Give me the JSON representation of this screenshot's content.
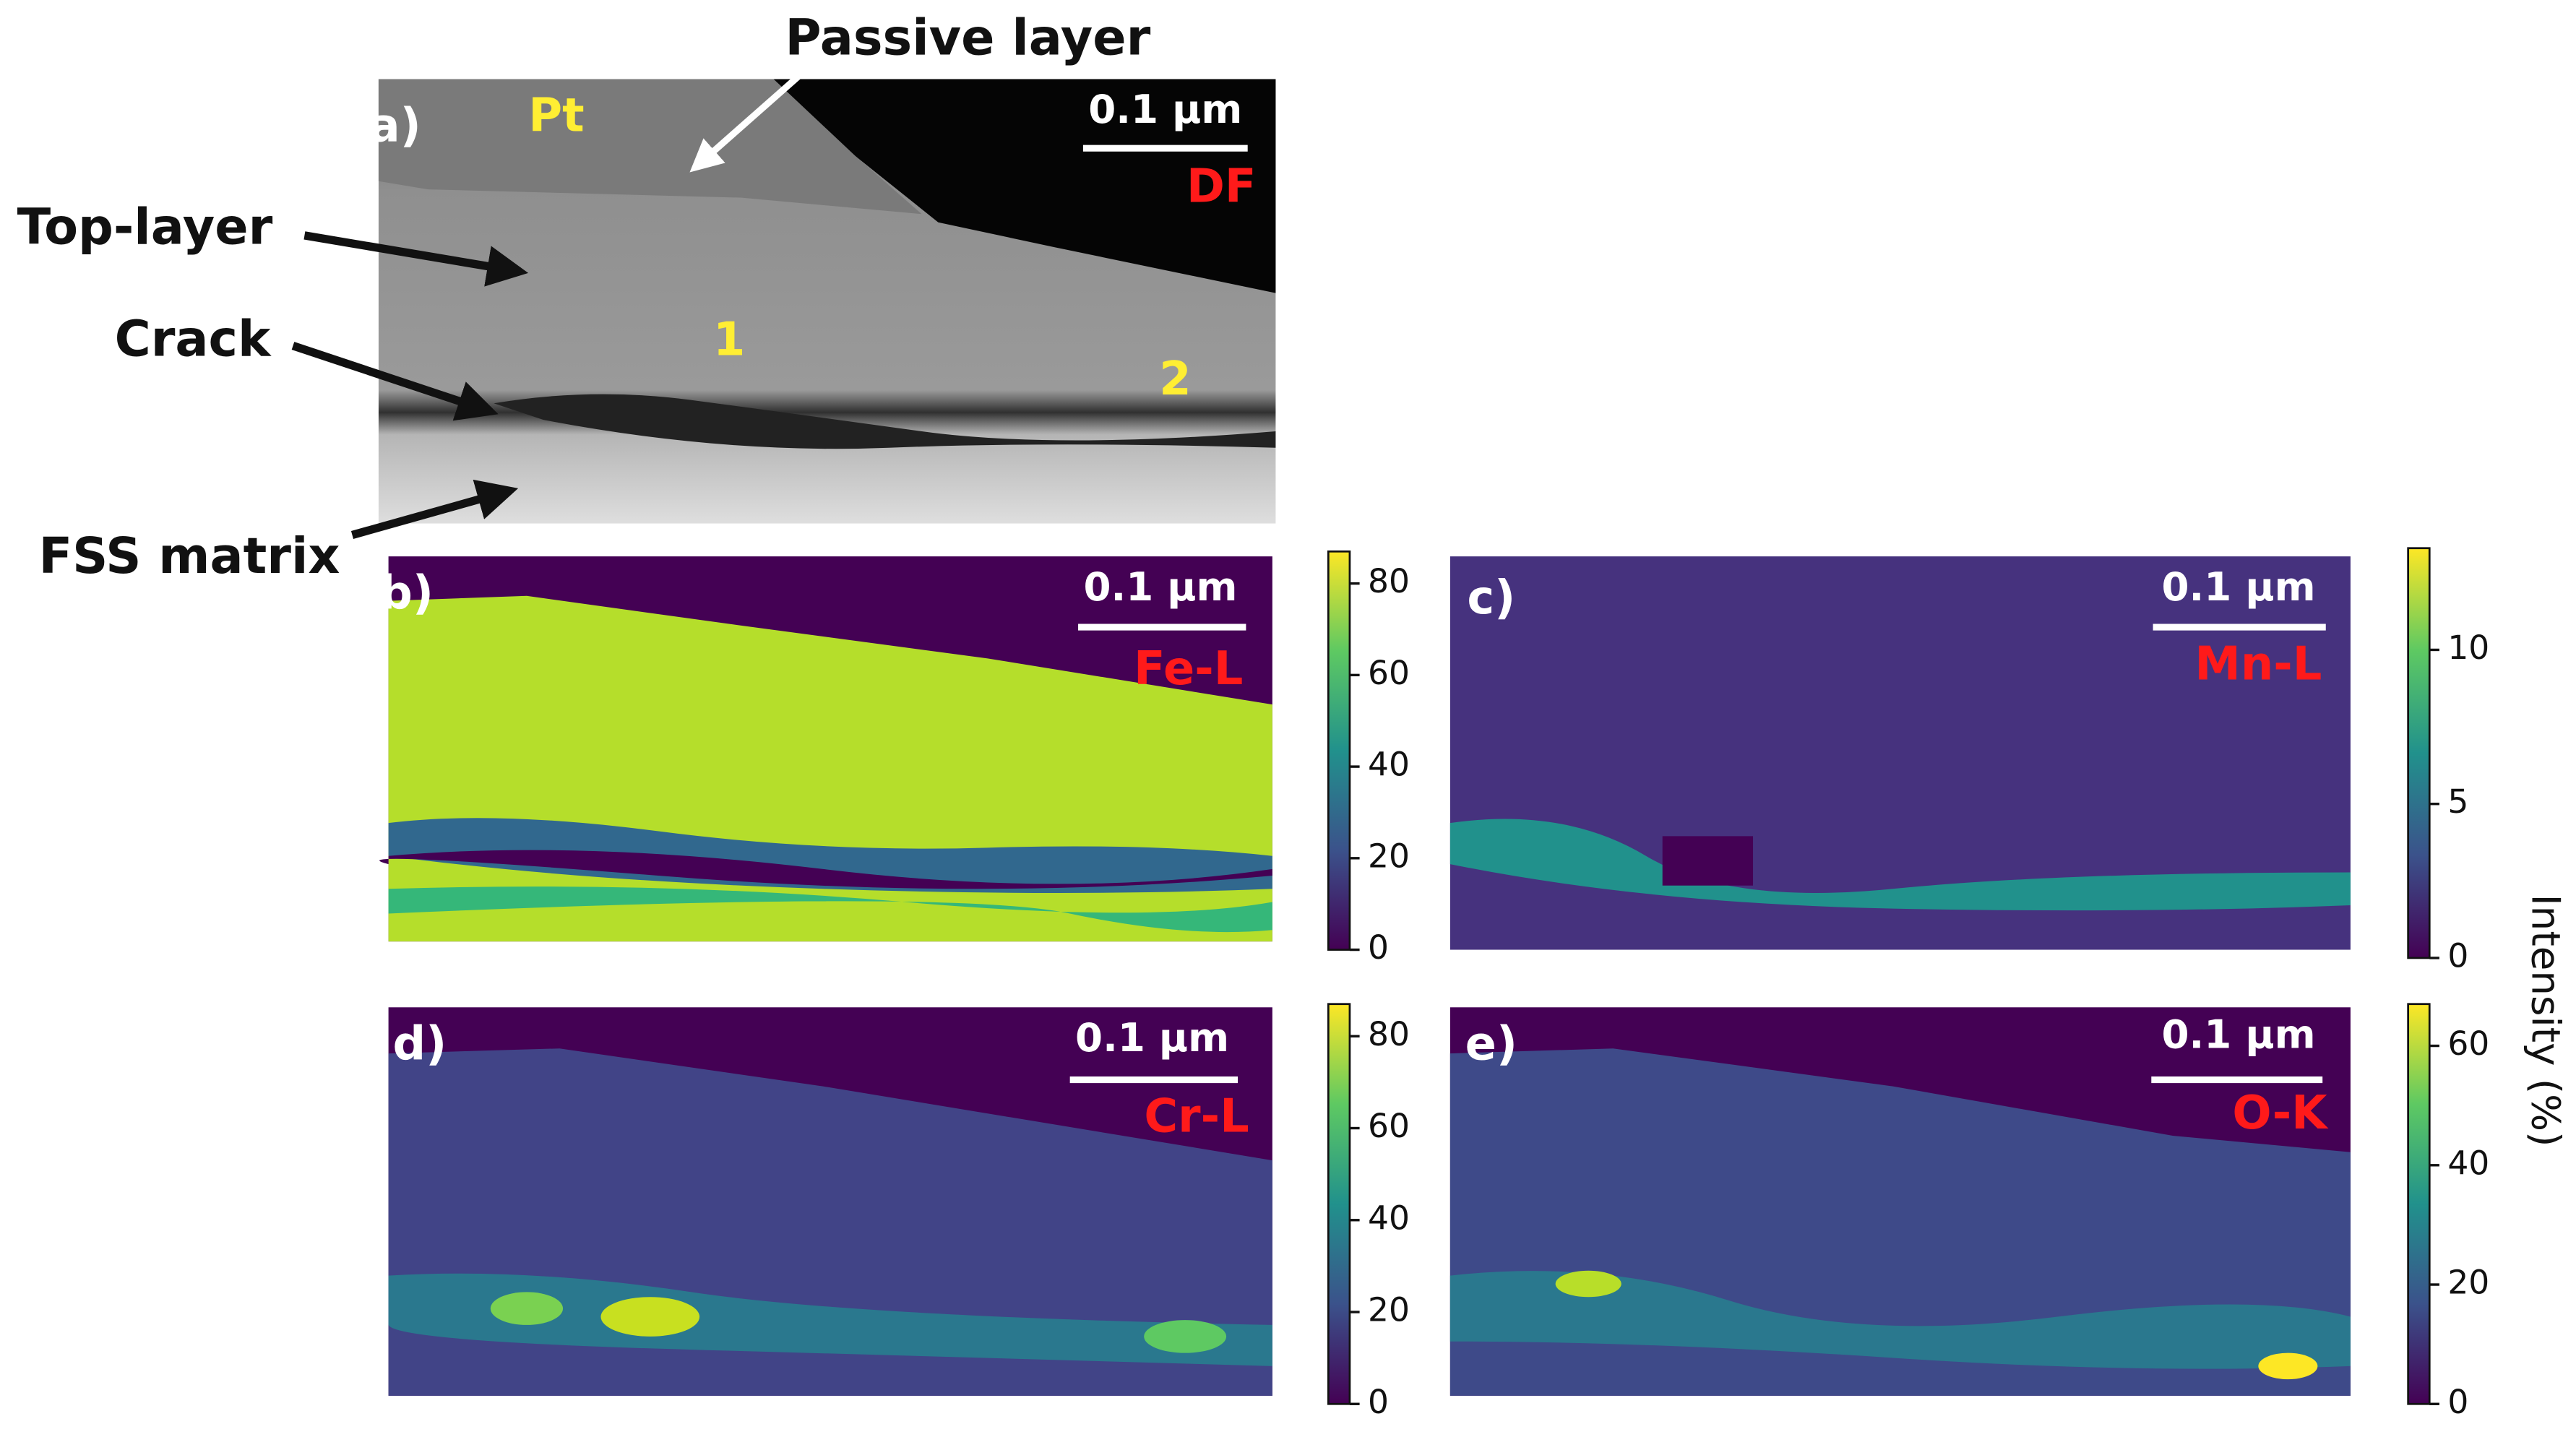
{
  "annotations": {
    "passive_layer": "Passive layer",
    "top_layer": "Top-layer",
    "crack": "Crack",
    "fss_matrix": "FSS matrix"
  },
  "panels": [
    {
      "label": "a)",
      "scale_bar": "0.1 µm",
      "signal": "DF",
      "markers": [
        "Pt",
        "1",
        "2"
      ]
    },
    {
      "label": "b)",
      "scale_bar": "0.1 µm",
      "signal": "Fe-L",
      "colorbar": {
        "lim": [
          0,
          87
        ],
        "ticks": [
          0,
          20,
          40,
          60,
          80
        ]
      }
    },
    {
      "label": "c)",
      "scale_bar": "0.1 µm",
      "signal": "Mn-L",
      "colorbar": {
        "lim": [
          0,
          13.3
        ],
        "ticks": [
          0,
          5,
          10
        ]
      }
    },
    {
      "label": "d)",
      "scale_bar": "0.1 µm",
      "signal": "Cr-L",
      "colorbar": {
        "lim": [
          0,
          87
        ],
        "ticks": [
          0,
          20,
          40,
          60,
          80
        ]
      }
    },
    {
      "label": "e)",
      "scale_bar": "0.1 µm",
      "signal": "O-K",
      "colorbar": {
        "lim": [
          0,
          67
        ],
        "ticks": [
          0,
          20,
          40,
          60
        ]
      }
    }
  ],
  "colorbar_label": "Intensity (%)"
}
